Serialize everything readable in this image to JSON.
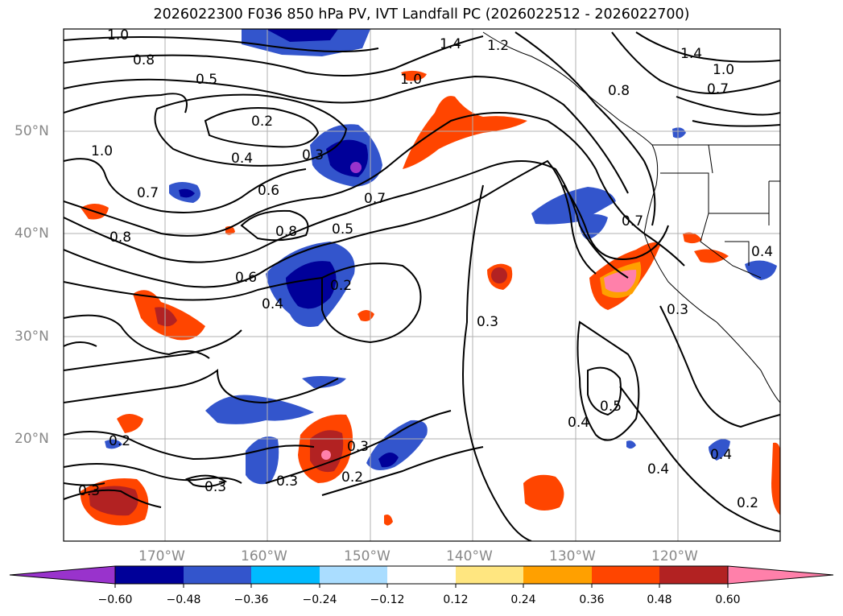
{
  "title": "2026022300 F036 850 hPa PV, IVT Landfall PC (2026022512 - 2026022700)",
  "map": {
    "lat_labels": [
      "50°N",
      "40°N",
      "30°N",
      "20°N"
    ],
    "lon_labels": [
      "170°W",
      "160°W",
      "150°W",
      "140°W",
      "130°W",
      "120°W"
    ],
    "contour_labels": [
      "1.0",
      "0.8",
      "0.5",
      "0.2",
      "0.4",
      "0.3",
      "1.4",
      "1.2",
      "1.0",
      "0.8",
      "1.4",
      "1.0",
      "0.7",
      "1.0",
      "0.7",
      "0.6",
      "0.8",
      "0.5",
      "0.7",
      "0.8",
      "0.6",
      "0.4",
      "0.2",
      "0.3",
      "0.5",
      "0.4",
      "0.3",
      "0.3",
      "0.2",
      "0.3",
      "0.4",
      "0.2",
      "0.2",
      "0.3",
      "0.4",
      "0.3",
      "0.7",
      "0.4"
    ]
  },
  "colorbar": {
    "ticks": [
      "−0.60",
      "−0.48",
      "−0.36",
      "−0.24",
      "−0.12",
      "0.12",
      "0.24",
      "0.36",
      "0.48",
      "0.60"
    ],
    "colors": [
      "#9933cc",
      "#000099",
      "#3355cc",
      "#00bbff",
      "#aaddff",
      "#ffffff",
      "#ffe680",
      "#ffa000",
      "#ff4500",
      "#b22222",
      "#ff80aa"
    ]
  }
}
